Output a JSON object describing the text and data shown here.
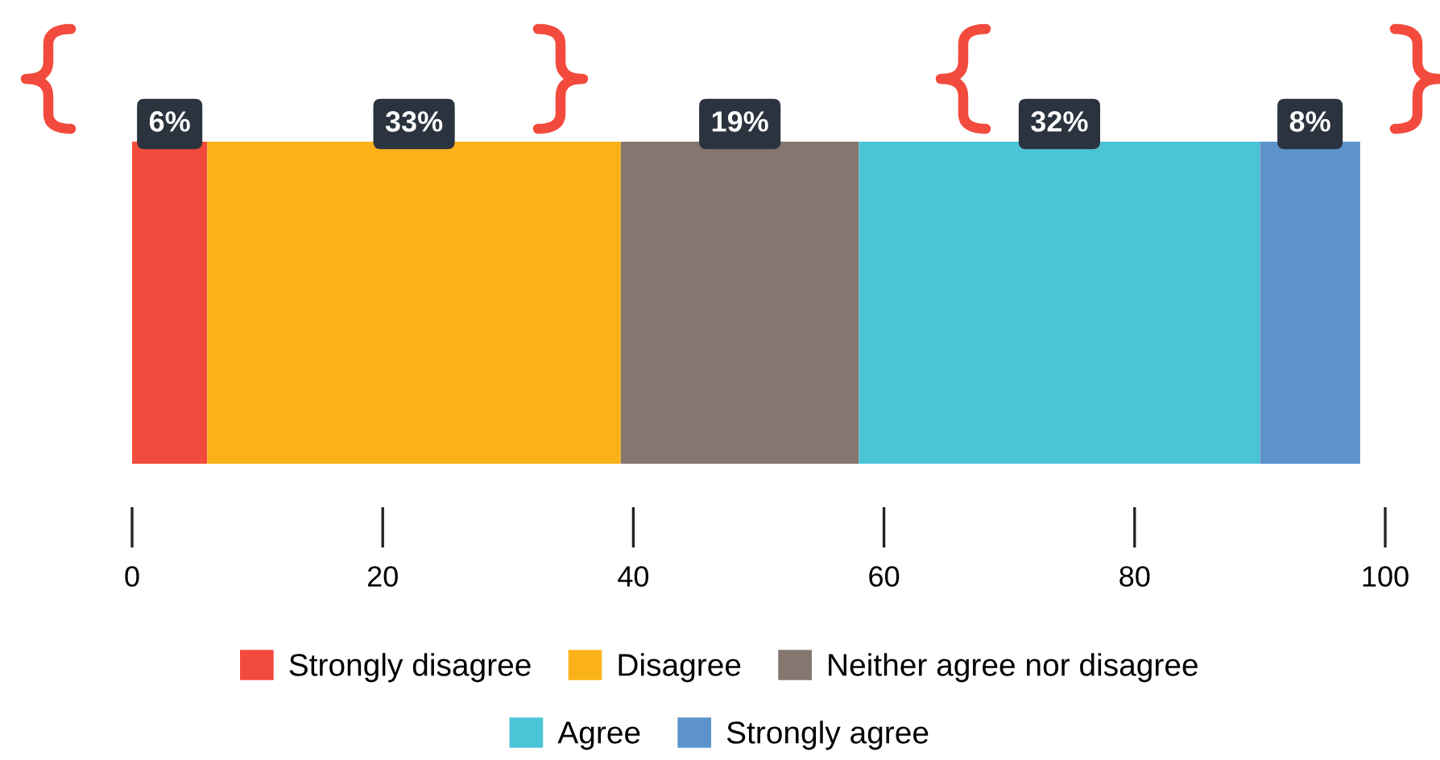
{
  "chart_data": {
    "type": "bar",
    "orientation": "horizontal",
    "stacked": true,
    "categories": [
      null
    ],
    "series": [
      {
        "name": "Strongly disagree",
        "color": "#f24a3c",
        "values": [
          6
        ],
        "value_labels": [
          "6%"
        ]
      },
      {
        "name": "Disagree",
        "color": "#fbb219",
        "values": [
          33
        ],
        "value_labels": [
          "33%"
        ]
      },
      {
        "name": "Neither agree nor disagree",
        "color": "#857670",
        "values": [
          19
        ],
        "value_labels": [
          "19%"
        ]
      },
      {
        "name": "Agree",
        "color": "#4bc4d6",
        "values": [
          32
        ],
        "value_labels": [
          "32%"
        ]
      },
      {
        "name": "Strongly agree",
        "color": "#5b93ca",
        "values": [
          8
        ],
        "value_labels": [
          "8%"
        ]
      }
    ],
    "xlim": [
      0,
      100
    ],
    "xticks": [
      0,
      20,
      40,
      60,
      80,
      100
    ],
    "grid": false,
    "legend": "bottom",
    "tick_labels": "x"
  }
}
